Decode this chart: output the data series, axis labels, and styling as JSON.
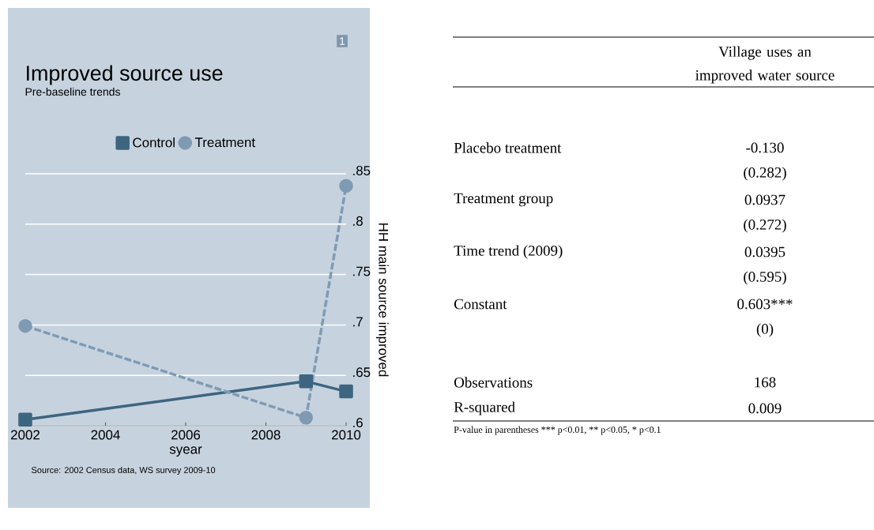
{
  "chart_data": [
    {
      "type": "line",
      "title": "Improved source use",
      "subtitle": "Pre-baseline trends",
      "xlabel": "syear",
      "ylabel": "HH main source improved",
      "x": [
        2002,
        2009,
        2010
      ],
      "series": [
        {
          "name": "Control",
          "color": "#3e6580",
          "values": [
            0.606,
            0.644,
            0.634
          ],
          "marker": "square",
          "line_style": "solid"
        },
        {
          "name": "Treatment",
          "color": "#7f9bb3",
          "values": [
            0.699,
            0.608,
            0.838
          ],
          "marker": "circle",
          "line_style": "dashed"
        }
      ],
      "xlim": [
        2002,
        2010
      ],
      "ylim": [
        0.6,
        0.85
      ],
      "xticks": [
        2002,
        2004,
        2006,
        2008,
        2010
      ],
      "yticks": [
        {
          "value": 0.6,
          "label": ".6"
        },
        {
          "value": 0.65,
          "label": ".65"
        },
        {
          "value": 0.7,
          "label": ".7"
        },
        {
          "value": 0.75,
          "label": ".75"
        },
        {
          "value": 0.8,
          "label": ".8"
        },
        {
          "value": 0.85,
          "label": ".85"
        }
      ],
      "grid": "y",
      "legend": "top",
      "annotations": [
        "1",
        "Source: 2002 Census data, WS survey 2009-10"
      ]
    },
    {
      "type": "other",
      "title": "Village uses an improved water source",
      "categories": [
        "Placebo treatment",
        null,
        "Treatment group",
        null,
        "Time trend (2009)",
        null,
        "Constant",
        null,
        null,
        "Observations",
        "R-squared"
      ],
      "value_labels": [
        "-0.130",
        "(0.282)",
        "0.0937",
        "(0.272)",
        "0.0395",
        "(0.595)",
        "0.603***",
        "(0)",
        null,
        "168",
        "0.009"
      ],
      "annotations": [
        "P-value in parentheses *** p<0.01, ** p<0.05, * p<0.1"
      ]
    }
  ]
}
